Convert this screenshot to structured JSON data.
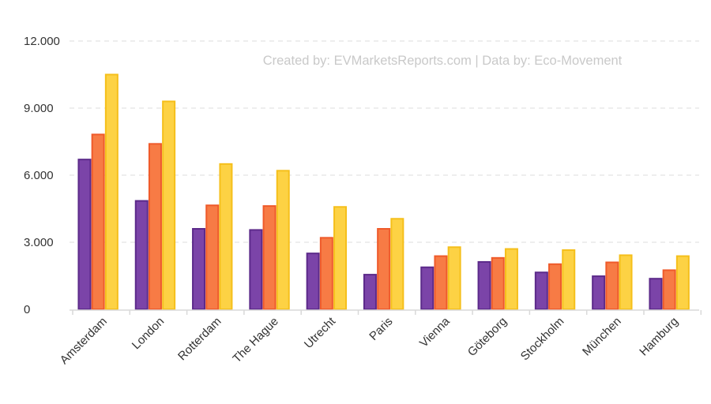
{
  "credit": "Created by: EVMarketsReports.com | Data by: Eco-Movement",
  "colors": {
    "series": [
      {
        "fill": "#7b44a8",
        "stroke": "#5c2a8a"
      },
      {
        "fill": "#f77b45",
        "stroke": "#ef5a2a"
      },
      {
        "fill": "#fdd244",
        "stroke": "#f5bf1b"
      }
    ],
    "grid": "#e3e3e3",
    "axis": "#d9d9d9"
  },
  "chart_data": {
    "type": "bar",
    "title": "",
    "xlabel": "",
    "ylabel": "",
    "ylim": [
      0,
      12000
    ],
    "yticks": [
      0,
      3000,
      6000,
      9000,
      12000
    ],
    "ytick_labels": [
      "0",
      "3.000",
      "6.000",
      "9.000",
      "12.000"
    ],
    "grid": true,
    "legend": "none",
    "categories": [
      "Amsterdam",
      "London",
      "Rotterdam",
      "The Hague",
      "Utrecht",
      "Paris",
      "Vienna",
      "Göteborg",
      "Stockholm",
      "München",
      "Hamburg"
    ],
    "series": [
      {
        "values": [
          6700,
          4850,
          3600,
          3550,
          2500,
          1550,
          1880,
          2120,
          1650,
          1480,
          1370
        ]
      },
      {
        "values": [
          7820,
          7400,
          4650,
          4620,
          3200,
          3600,
          2380,
          2300,
          2020,
          2100,
          1750
        ]
      },
      {
        "values": [
          10500,
          9300,
          6500,
          6200,
          4580,
          4050,
          2780,
          2700,
          2650,
          2420,
          2380
        ]
      }
    ]
  }
}
